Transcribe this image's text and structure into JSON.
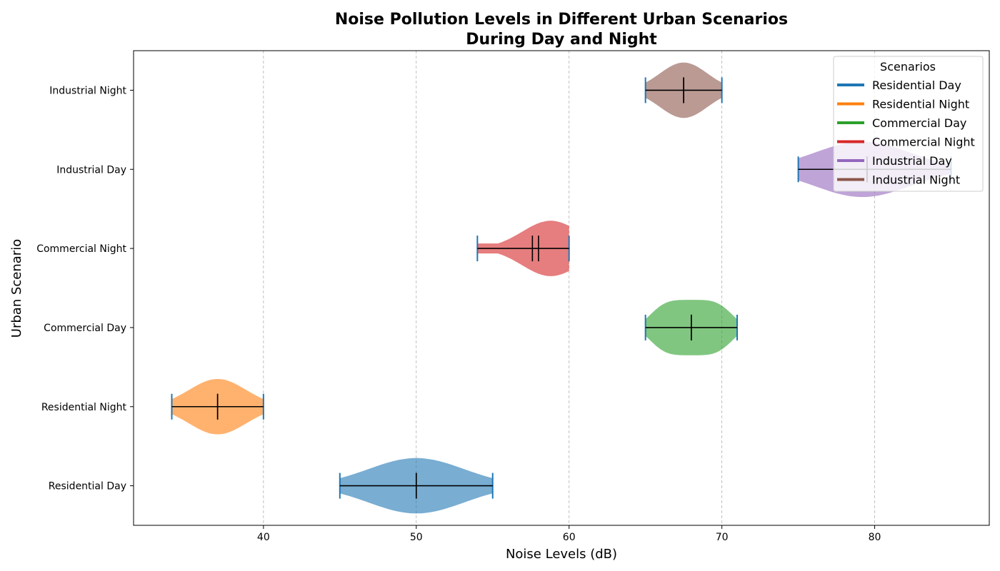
{
  "chart_data": {
    "type": "violin",
    "orientation": "horizontal",
    "title_line1": "Noise Pollution Levels in Different Urban Scenarios",
    "title_line2": "During Day and Night",
    "xlabel": "Noise Levels (dB)",
    "ylabel": "Urban Scenario",
    "xlim": [
      31.5,
      87.5
    ],
    "xticks": [
      40,
      50,
      60,
      70,
      80
    ],
    "grid": "x-dashed",
    "legend_title": "Scenarios",
    "legend_position": "top-right",
    "series": [
      {
        "name": "Residential Day",
        "color": "#1f77b4",
        "min": 45,
        "max": 55,
        "mean": 50,
        "median": 50,
        "max_half_width": 0.35,
        "peak_at": 50
      },
      {
        "name": "Residential Night",
        "color": "#ff7f0e",
        "min": 34,
        "max": 40,
        "mean": 37,
        "median": 37,
        "max_half_width": 0.35,
        "peak_at": 37
      },
      {
        "name": "Commercial Day",
        "color": "#2ca02c",
        "min": 65,
        "max": 71,
        "mean": 68,
        "median": 68,
        "max_half_width": 0.35,
        "peak_at": 68,
        "shape": "flat"
      },
      {
        "name": "Commercial Night",
        "color": "#d62728",
        "min": 54,
        "max": 60,
        "mean": 57.6,
        "median": 58,
        "max_half_width": 0.35,
        "peak_at": 58.8,
        "shape": "skew"
      },
      {
        "name": "Industrial Day",
        "color": "#9467bd",
        "min": 75,
        "max": 85,
        "mean": 79.5,
        "median": 79.5,
        "max_half_width": 0.35,
        "peak_at": 79.2
      },
      {
        "name": "Industrial Night",
        "color": "#8c564b",
        "min": 65,
        "max": 70,
        "mean": 67.5,
        "median": 67.5,
        "max_half_width": 0.35,
        "peak_at": 67.5
      }
    ]
  }
}
